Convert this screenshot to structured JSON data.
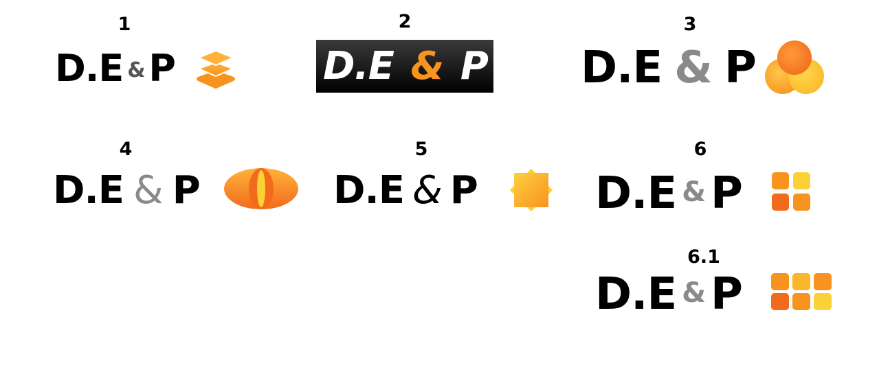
{
  "colors": {
    "orange": "#f7931e",
    "orange_dark": "#f26b1d",
    "yellow": "#fbd135",
    "gray": "#8a8a8a",
    "dark_gray": "#555555"
  },
  "logos": [
    {
      "number": "1",
      "left": "D.E",
      "amp": "&",
      "right": "P",
      "icon": "stack-layers-icon"
    },
    {
      "number": "2",
      "left": "D.E",
      "amp": "&",
      "right": "P",
      "icon": "dark-badge"
    },
    {
      "number": "3",
      "left": "D.E",
      "amp": "&",
      "right": "P",
      "icon": "three-circles-icon"
    },
    {
      "number": "4",
      "left": "D.E",
      "amp": "&",
      "right": "P",
      "icon": "eye-shape-icon"
    },
    {
      "number": "5",
      "left": "D.E",
      "amp": "&",
      "right": "P",
      "icon": "star-burst-icon"
    },
    {
      "number": "6",
      "left": "D.E",
      "amp": "&",
      "right": "P",
      "icon": "grid-4-icon"
    },
    {
      "number": "6.1",
      "left": "D.E",
      "amp": "&",
      "right": "P",
      "icon": "grid-6-icon"
    }
  ]
}
